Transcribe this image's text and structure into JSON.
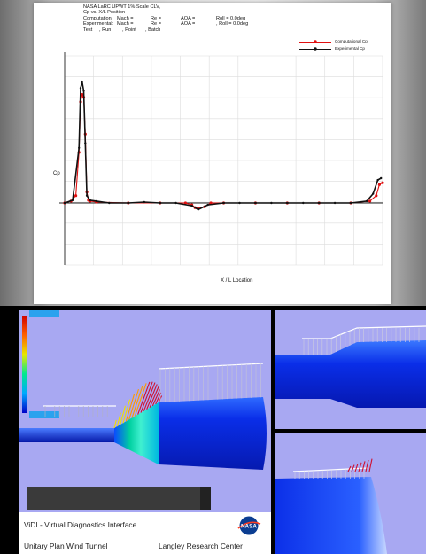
{
  "header": {
    "title": "NASA LaRC UPWT 1% Scale CLV,",
    "subtitle": "Cp vs. X/L Position",
    "computation": {
      "label": "Computation:",
      "mach": "Mach = ",
      "re": "Re = ",
      "aoa": "AOA = ",
      "roll": "Roll = 0.0deg"
    },
    "experimental": {
      "label": "Experimental:",
      "mach": "Mach = ",
      "re": "Re = ",
      "aoa": "AOA = ",
      "roll": ", Roll = 0.0deg"
    },
    "test": {
      "test": "Test",
      "run": ", Run",
      "point": ", Point",
      "batch": ", Batch"
    }
  },
  "chart_data": {
    "type": "line",
    "title": "NASA LaRC UPWT 1% Scale CLV,",
    "subtitle": "Cp vs. X/L Position",
    "xlabel": "X / L Location",
    "ylabel": "Cp",
    "legend_position": "top-right",
    "grid": true,
    "series": [
      {
        "name": "Computational Cp",
        "color": "#e01010",
        "x": [
          0.0,
          0.02,
          0.035,
          0.045,
          0.05,
          0.055,
          0.06,
          0.065,
          0.07,
          0.075,
          0.08,
          0.1,
          0.2,
          0.3,
          0.38,
          0.4,
          0.41,
          0.42,
          0.44,
          0.46,
          0.5,
          0.6,
          0.7,
          0.8,
          0.9,
          0.96,
          0.98,
          0.99,
          1.0
        ],
        "y": [
          0.0,
          0.02,
          0.08,
          0.55,
          1.1,
          1.18,
          1.15,
          0.75,
          0.12,
          0.03,
          0.02,
          0.01,
          0.0,
          0.0,
          0.0,
          -0.02,
          -0.05,
          -0.06,
          -0.04,
          0.0,
          0.0,
          0.0,
          0.0,
          0.0,
          0.0,
          0.02,
          0.08,
          0.2,
          0.22
        ]
      },
      {
        "name": "Experimental Cp",
        "color": "#111111",
        "x": [
          0.0,
          0.025,
          0.045,
          0.05,
          0.055,
          0.06,
          0.065,
          0.07,
          0.08,
          0.1,
          0.14,
          0.2,
          0.25,
          0.3,
          0.35,
          0.4,
          0.42,
          0.45,
          0.5,
          0.55,
          0.6,
          0.65,
          0.7,
          0.75,
          0.8,
          0.85,
          0.9,
          0.95,
          0.97,
          0.985,
          0.995
        ],
        "y": [
          0.0,
          0.03,
          0.6,
          1.25,
          1.32,
          1.22,
          0.65,
          0.08,
          0.03,
          0.02,
          0.0,
          0.0,
          0.01,
          0.0,
          0.0,
          -0.03,
          -0.07,
          -0.02,
          0.0,
          0.0,
          0.0,
          0.0,
          0.0,
          0.0,
          0.0,
          0.0,
          0.0,
          0.02,
          0.1,
          0.25,
          0.27
        ]
      }
    ]
  },
  "footer": {
    "title": "ViDI - Virtual Diagnostics Interface",
    "left": "Unitary Plan Wind Tunnel",
    "right": "Langley Research Center",
    "logo_text": "NASA"
  },
  "colors": {
    "background_view": "#a8a8f2",
    "body_blue": "#0a2ee8",
    "computational": "#e01010",
    "experimental": "#111111"
  }
}
